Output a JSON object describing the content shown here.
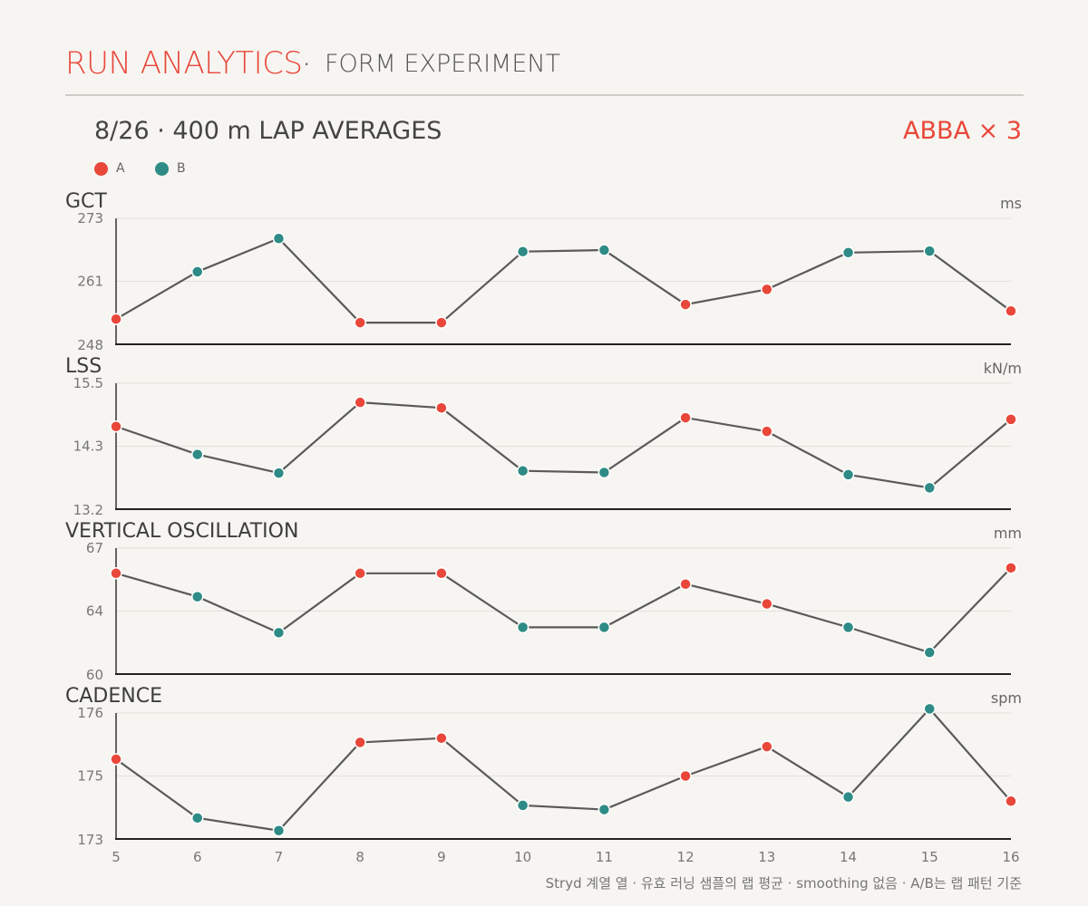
{
  "header": {
    "brand": "RUN ANALYTICS",
    "separator": "·",
    "subtitle": "FORM EXPERIMENT"
  },
  "section": {
    "title": "8/26 · 400 m LAP AVERAGES",
    "badge": "ABBA × 3"
  },
  "legend": [
    {
      "label": "A",
      "color": "#e8473a"
    },
    {
      "label": "B",
      "color": "#2e8b86"
    }
  ],
  "footer": "Stryd 계열 열 · 유효 러닝 샘플의 랩 평균 · smoothing 없음 · A/B는 랩 패턴 기준",
  "colors": {
    "A": "#e8473a",
    "B": "#2e8b86",
    "line": "#5a5a5a"
  },
  "chart_data": {
    "type": "line",
    "x": [
      5,
      6,
      7,
      8,
      9,
      10,
      11,
      12,
      13,
      14,
      15,
      16
    ],
    "x_tick_labels": [
      "5",
      "6",
      "7",
      "8",
      "9",
      "10",
      "11",
      "12",
      "13",
      "14",
      "15",
      "16"
    ],
    "groups": [
      "A",
      "B",
      "B",
      "A",
      "A",
      "B",
      "B",
      "A",
      "A",
      "B",
      "B",
      "A"
    ],
    "series": [
      {
        "name": "GCT",
        "unit": "ms",
        "yticks": [
          "273",
          "261",
          "248"
        ],
        "ylim": [
          248,
          273
        ],
        "values": [
          253.0,
          262.4,
          269.0,
          252.3,
          252.3,
          266.4,
          266.7,
          255.9,
          258.9,
          266.2,
          266.5,
          254.6
        ]
      },
      {
        "name": "LSS",
        "unit": "kN/m",
        "yticks": [
          "15.5",
          "14.3",
          "13.2"
        ],
        "ylim": [
          13.2,
          15.5
        ],
        "values": [
          14.71,
          14.2,
          13.86,
          15.15,
          15.05,
          13.9,
          13.87,
          14.87,
          14.62,
          13.83,
          13.59,
          14.84
        ]
      },
      {
        "name": "VERTICAL OSCILLATION",
        "unit": "mm",
        "yticks": [
          "67",
          "64",
          "60"
        ],
        "ylim": [
          60,
          67
        ],
        "values": [
          65.6,
          64.3,
          62.3,
          65.6,
          65.6,
          62.6,
          62.6,
          65.0,
          63.9,
          62.6,
          61.2,
          65.9
        ]
      },
      {
        "name": "CADENCE",
        "unit": "spm",
        "yticks": [
          "176",
          "175",
          "173"
        ],
        "ylim": [
          173,
          176
        ],
        "values": [
          174.9,
          173.5,
          173.2,
          175.3,
          175.4,
          173.8,
          173.7,
          174.5,
          175.2,
          174.0,
          176.1,
          173.9
        ]
      }
    ],
    "grid": true,
    "legend": "top-left"
  }
}
